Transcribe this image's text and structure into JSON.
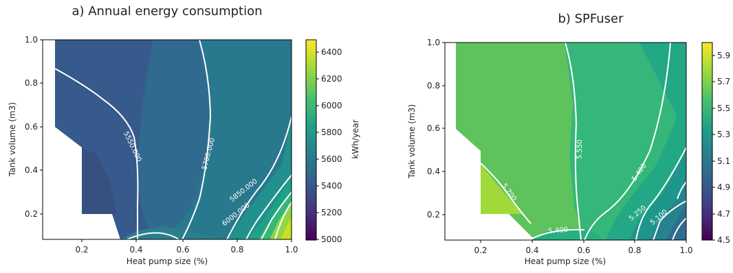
{
  "chart_data": [
    {
      "type": "contour",
      "title": "a) Annual energy consumption",
      "xlabel": "Heat pump size (%)",
      "ylabel": "Tank volume (m3)",
      "xlim": [
        0.08,
        1.0
      ],
      "ylim": [
        0.08,
        1.0
      ],
      "x_ticks": [
        "0.2",
        "0.4",
        "0.6",
        "0.8",
        "1.0"
      ],
      "y_ticks": [
        "0.2",
        "0.4",
        "0.6",
        "0.8",
        "1.0"
      ],
      "colorbar": {
        "label": "kWh/year",
        "min": 5000,
        "max": 6500,
        "ticks": [
          "5000",
          "5200",
          "5400",
          "5600",
          "5800",
          "6000",
          "6200",
          "6400"
        ]
      },
      "contour_labels": [
        "5550.000",
        "5700.000",
        "5850.000",
        "6000.000"
      ],
      "grid": false
    },
    {
      "type": "contour",
      "title": "b) SPFuser",
      "xlabel": "Heat pump size (%)",
      "ylabel": "Tank volume (m3)",
      "xlim": [
        0.08,
        1.0
      ],
      "ylim": [
        0.08,
        1.0
      ],
      "x_ticks": [
        "0.2",
        "0.4",
        "0.6",
        "0.8",
        "1.0"
      ],
      "y_ticks": [
        "0.2",
        "0.4",
        "0.6",
        "0.8",
        "1.0"
      ],
      "colorbar": {
        "label": "",
        "min": 4.5,
        "max": 6.0,
        "ticks": [
          "4.5",
          "4.7",
          "4.9",
          "5.1",
          "5.3",
          "5.5",
          "5.7",
          "5.9"
        ]
      },
      "contour_labels": [
        "5.700",
        "5.550",
        "5.400",
        "5.400",
        "5.250",
        "5.100"
      ],
      "grid": false
    }
  ]
}
